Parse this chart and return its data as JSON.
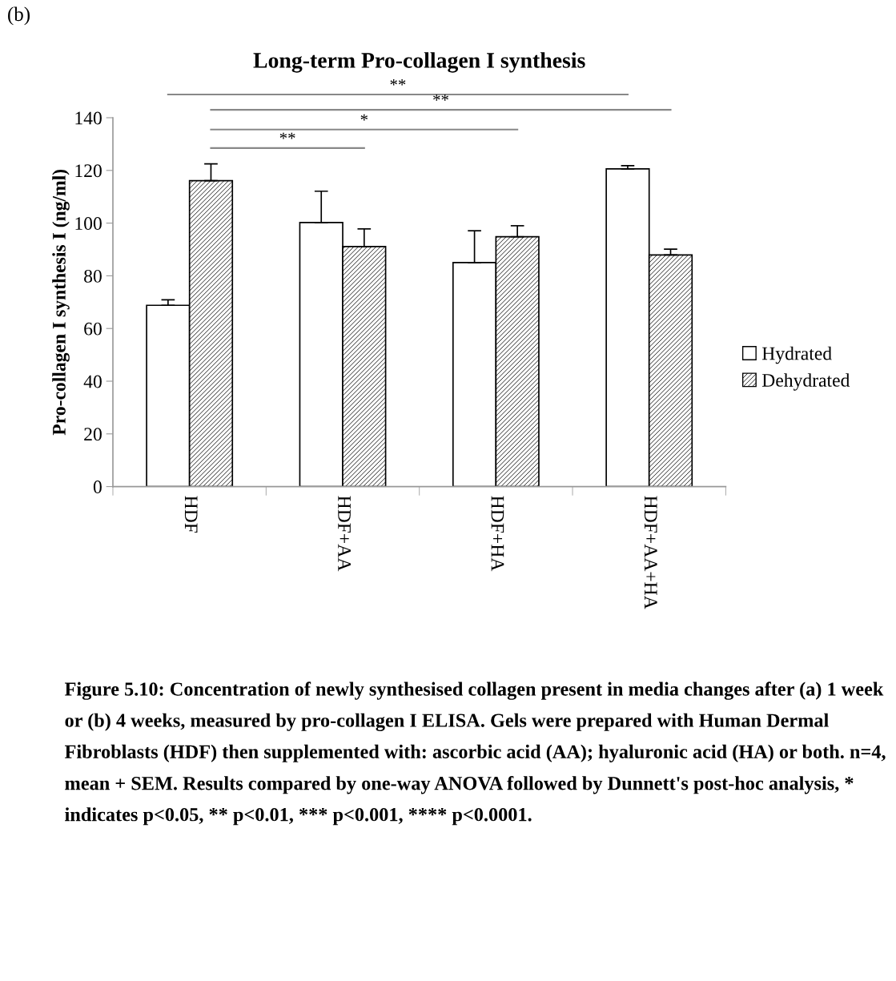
{
  "chart_data": {
    "type": "bar",
    "title": "Long-term Pro-collagen I synthesis",
    "ylabel": "Pro-collagen I synthesis I (ng/ml)",
    "categories": [
      "HDF",
      "HDF+AA",
      "HDF+HA",
      "HDF+AA+HA"
    ],
    "series": [
      {
        "name": "Hydrated",
        "color": "#ffffff",
        "values": [
          68.8,
          100.2,
          85.0,
          120.6
        ],
        "errors": [
          [
            68.8,
            70.9
          ],
          [
            100.2,
            112.1
          ],
          [
            85.0,
            97.1
          ],
          [
            120.6,
            121.8
          ]
        ]
      },
      {
        "name": "Dehydrated",
        "color": "#000000",
        "values": [
          116.1,
          91.1,
          94.8,
          87.9
        ],
        "errors": [
          [
            116.1,
            122.5
          ],
          [
            91.1,
            97.8
          ],
          [
            94.8,
            99.0
          ],
          [
            87.9,
            90.1
          ]
        ]
      }
    ],
    "ylim": [
      0,
      140
    ],
    "yticks": [
      0,
      20,
      40,
      60,
      80,
      100,
      120,
      140
    ],
    "grid": false,
    "legend": "right",
    "annotations": [
      "**",
      "*",
      "**",
      "**",
      "(b)",
      "Figure 5.10: Concentration of newly synthesised collagen present in media changes after (a) 1 week or (b) 4 weeks, measured by pro-collagen I ELISA. Gels were prepared with Human Dermal Fibroblasts (HDF) then supplemented with: ascorbic acid (AA); hyaluronic acid (HA) or both. n=4, mean + SEM. Results compared by one-way ANOVA followed by Dunnett's post-hoc analysis, * indicates p<0.05, ** p<0.01, *** p<0.001, **** p<0.0001."
    ]
  }
}
